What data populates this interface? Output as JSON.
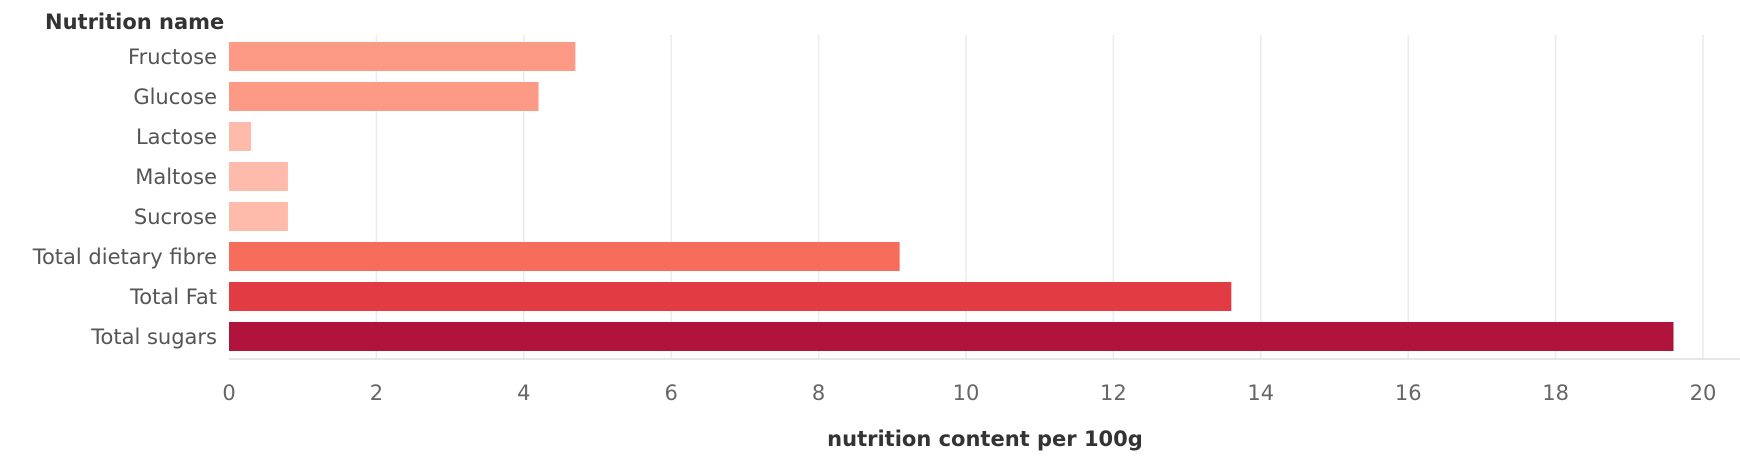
{
  "chart_data": {
    "type": "bar",
    "orientation": "horizontal",
    "row_header": "Nutrition name",
    "xlabel": "nutrition content per 100g",
    "xlim": [
      0,
      21
    ],
    "xticks": [
      0,
      2,
      4,
      6,
      8,
      10,
      12,
      14,
      16,
      18,
      20
    ],
    "grid": true,
    "categories": [
      "Fructose",
      "Glucose",
      "Lactose",
      "Maltose",
      "Sucrose",
      "Total dietary fibre",
      "Total Fat",
      "Total sugars"
    ],
    "values": [
      4.7,
      4.2,
      0.3,
      0.8,
      0.8,
      9.1,
      13.6,
      19.6
    ],
    "colors": [
      "#fc9a85",
      "#fc9a85",
      "#febbab",
      "#febbab",
      "#febbab",
      "#f66e5b",
      "#e13c44",
      "#b0133b"
    ]
  }
}
